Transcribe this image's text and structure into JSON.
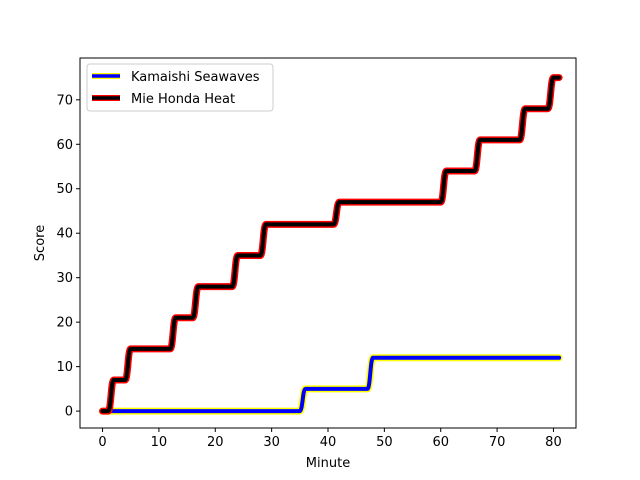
{
  "chart_data": {
    "type": "line",
    "title": "",
    "xlabel": "Minute",
    "ylabel": "Score",
    "xlim": [
      -4,
      84
    ],
    "ylim": [
      -3.8,
      79.4
    ],
    "xticks": [
      0,
      10,
      20,
      30,
      40,
      50,
      60,
      70,
      80
    ],
    "yticks": [
      0,
      10,
      20,
      30,
      40,
      50,
      60,
      70
    ],
    "grid": false,
    "legend_position": "top-left",
    "series": [
      {
        "name": "Kamaishi Seawaves",
        "line_color": "#0000ff",
        "edge_color": "#ffff00",
        "points": [
          [
            0,
            0
          ],
          [
            35,
            0
          ],
          [
            36,
            5
          ],
          [
            47,
            5
          ],
          [
            48,
            12
          ],
          [
            81,
            12
          ]
        ]
      },
      {
        "name": "Mie Honda Heat",
        "line_color": "#000000",
        "edge_color": "#ff0000",
        "points": [
          [
            0,
            0
          ],
          [
            1,
            0
          ],
          [
            2,
            7
          ],
          [
            3,
            7
          ],
          [
            4,
            7
          ],
          [
            5,
            14
          ],
          [
            12,
            14
          ],
          [
            13,
            21
          ],
          [
            16,
            21
          ],
          [
            17,
            28
          ],
          [
            23,
            28
          ],
          [
            24,
            35
          ],
          [
            28,
            35
          ],
          [
            29,
            42
          ],
          [
            41,
            42
          ],
          [
            42,
            47
          ],
          [
            60,
            47
          ],
          [
            61,
            54
          ],
          [
            66,
            54
          ],
          [
            67,
            61
          ],
          [
            74,
            61
          ],
          [
            75,
            68
          ],
          [
            79,
            68
          ],
          [
            80,
            75
          ],
          [
            81,
            75
          ]
        ]
      }
    ]
  }
}
